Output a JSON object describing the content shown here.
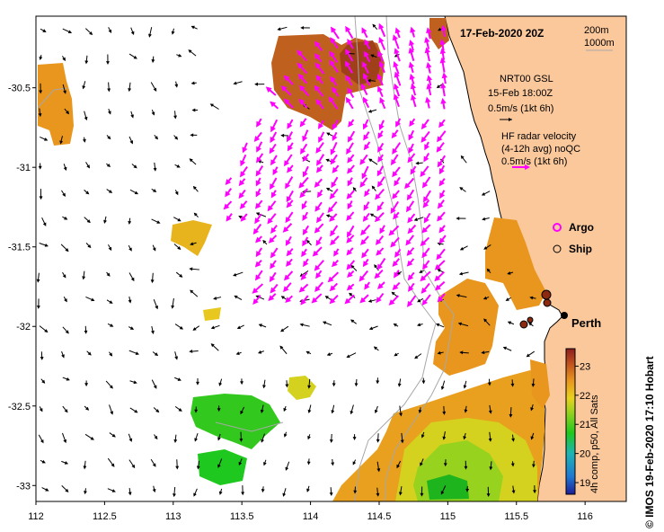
{
  "title": "17-Feb-2020 20Z",
  "contours": {
    "shallow": "200m",
    "deep": "1000m"
  },
  "gsl": {
    "name": "NRT00 GSL",
    "time": "15-Feb 18:00Z",
    "scale": "0.5m/s (1kt 6h)"
  },
  "hf": {
    "line1": "HF radar velocity",
    "line2": "(4-12h avg) noQC",
    "scale": "0.5m/s (1kt 6h)"
  },
  "legend": {
    "argo": "Argo",
    "ship": "Ship"
  },
  "city": "Perth",
  "colorbar": {
    "label": "4h comp, p50, All Sats",
    "ticks": [
      "23",
      "22",
      "21",
      "20",
      "19"
    ],
    "range": [
      18.6,
      23.6
    ]
  },
  "credit": "© IMOS 19-Feb-2020 17:10 Hobart",
  "axes": {
    "x_ticks": [
      "112",
      "112.5",
      "113",
      "113.5",
      "114",
      "114.5",
      "115",
      "115.5",
      "116"
    ],
    "y_ticks": [
      "-30.5",
      "-31",
      "-31.5",
      "-32",
      "-32.5",
      "-33"
    ],
    "lon_range": [
      112,
      116.3
    ],
    "lat_range": [
      -33.1,
      -30.05
    ]
  },
  "colors": {
    "land": "#fbc89c",
    "hf_arrow": "#ff00ff",
    "sst_hot": "#b4501e",
    "sst_warm": "#e89a1e",
    "sst_mid": "#e8c81e",
    "sst_cool": "#78d21e",
    "sst_cold": "#1eb41e"
  }
}
